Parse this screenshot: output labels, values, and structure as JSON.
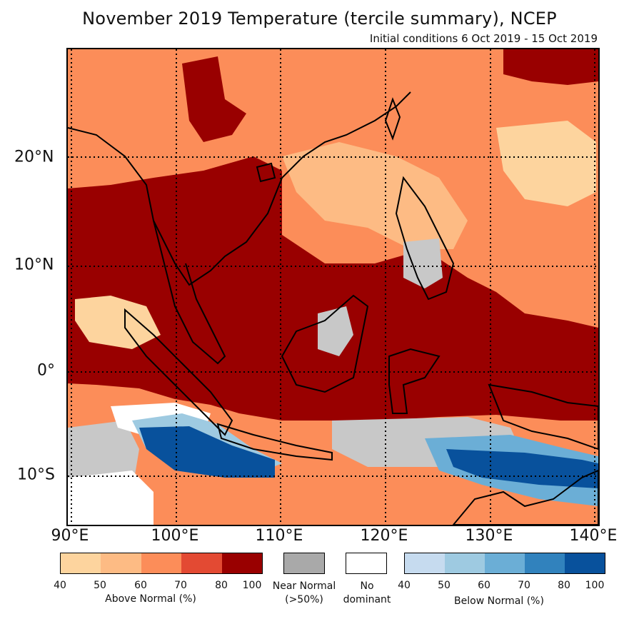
{
  "title": "November 2019 Temperature (tercile summary), NCEP",
  "subtitle": "Initial conditions 6 Oct 2019 - 15 Oct 2019",
  "axes": {
    "lon_labels": [
      "90°E",
      "100°E",
      "110°E",
      "120°E",
      "130°E",
      "140°E"
    ],
    "lat_labels": [
      "20°N",
      "10°N",
      "0°",
      "10°S"
    ]
  },
  "colors": {
    "above": [
      "#fdd49e",
      "#fdbb84",
      "#fc8d59",
      "#e34a33",
      "#990000"
    ],
    "near": "#a9a9a9",
    "none": "#ffffff",
    "below": [
      "#c6dbef",
      "#9ecae1",
      "#6baed6",
      "#3182bd",
      "#08519c"
    ],
    "grey_fill": "#c8c8c8"
  },
  "legend": {
    "above_ticks": [
      "40",
      "50",
      "60",
      "70",
      "80",
      "100"
    ],
    "above_label": "Above Normal (%)",
    "near_label_1": "Near Normal",
    "near_label_2": "(>50%)",
    "none_label_1": "No",
    "none_label_2": "dominant",
    "below_ticks": [
      "40",
      "50",
      "60",
      "70",
      "80",
      "100"
    ],
    "below_label": "Below Normal (%)"
  }
}
